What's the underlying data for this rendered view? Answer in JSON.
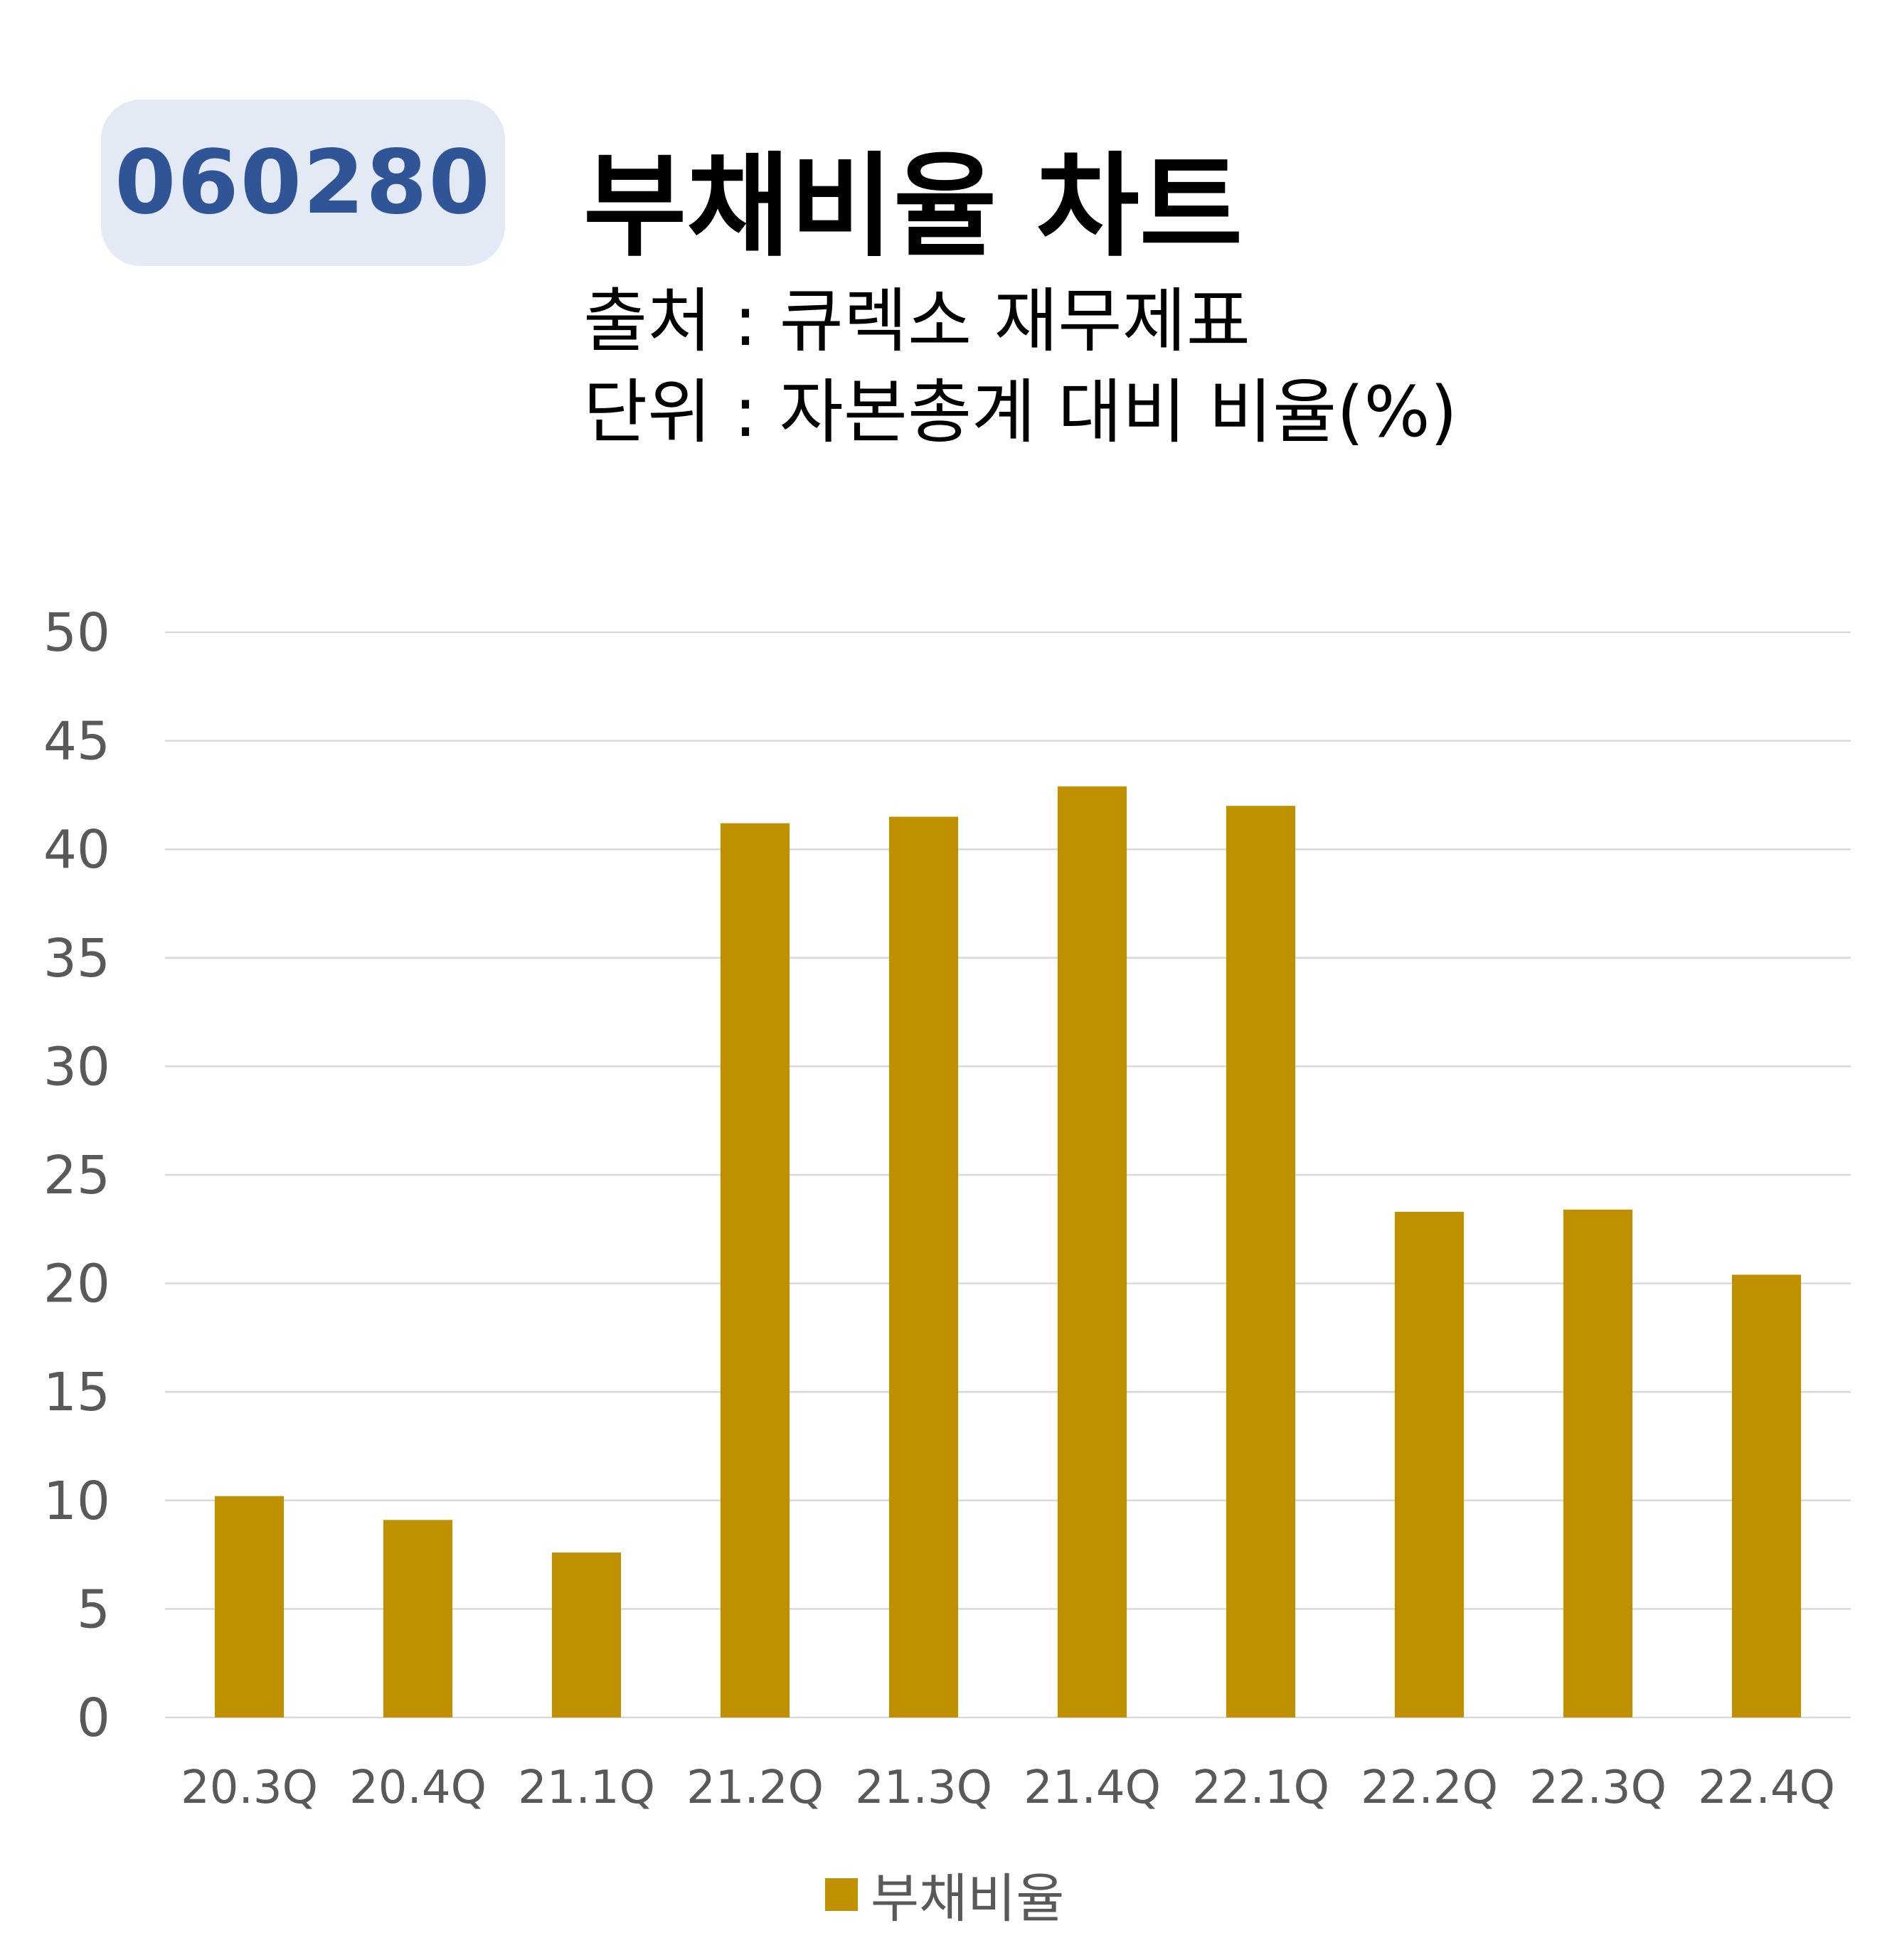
{
  "header": {
    "ticker": "060280",
    "title": "부채비율 차트",
    "source_line": "출처 : 큐렉소 재무제표",
    "unit_line": "단위 : 자본총계 대비 비율(%)"
  },
  "colors": {
    "bar": "#bf9000",
    "grid": "#d9d9d9",
    "tick_label": "#595959",
    "badge_bg": "#e3e9f5",
    "badge_text": "#2f5597"
  },
  "chart_data": {
    "type": "bar",
    "categories": [
      "20.3Q",
      "20.4Q",
      "21.1Q",
      "21.2Q",
      "21.3Q",
      "21.4Q",
      "22.1Q",
      "22.2Q",
      "22.3Q",
      "22.4Q"
    ],
    "series": [
      {
        "name": "부채비율",
        "values": [
          10.2,
          9.1,
          7.6,
          41.2,
          41.5,
          42.9,
          42.0,
          23.3,
          23.4,
          20.4
        ]
      }
    ],
    "ylim": [
      0,
      50
    ],
    "yticks": [
      0,
      5,
      10,
      15,
      20,
      25,
      30,
      35,
      40,
      45,
      50
    ],
    "grid": true,
    "legend": "bottom"
  }
}
